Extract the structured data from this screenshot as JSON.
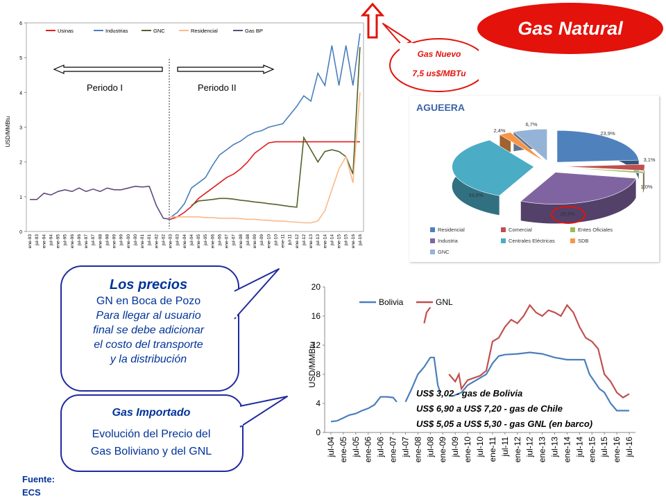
{
  "header": {
    "title": "Gas Natural",
    "new_gas_line1": "Gas Nuevo",
    "new_gas_line2": "7,5 us$/MBTu"
  },
  "callout_prices": {
    "title": "Los precios",
    "line1": "GN en Boca de Pozo",
    "line2": "Para llegar al usuario",
    "line3": "final se debe adicionar",
    "line4": "el costo del transporte",
    "line5": "y la distribución"
  },
  "callout_imported": {
    "title": "Gas Importado",
    "line1": "Evolución del Precio del",
    "line2": "Gas Boliviano y del GNL"
  },
  "source": {
    "line1": "Fuente:",
    "line2": "ECS"
  },
  "colors": {
    "usinas": "#e31a1c",
    "industrias": "#4a7ebb",
    "gnc": "#4f6228",
    "residencial": "#f9b98b",
    "gasbp": "#604a7b",
    "bolivia": "#4a7ebb",
    "gnl": "#c0504d",
    "accent_red": "#e3120b",
    "bubble_border": "#1f2a9e",
    "text_blue": "#003399"
  },
  "chart_data": [
    {
      "type": "line",
      "ylabel": "USD/MMBtu",
      "ylim": [
        0,
        6
      ],
      "yticks": [
        "0",
        "1",
        "2",
        "3",
        "4",
        "5",
        "6"
      ],
      "x": [
        "ene-93",
        "jul-93",
        "ene-94",
        "jul-94",
        "ene-95",
        "jul-95",
        "ene-96",
        "jul-96",
        "ene-97",
        "jul-97",
        "ene-98",
        "jul-98",
        "ene-99",
        "jul-99",
        "ene-00",
        "jul-00",
        "ene-01",
        "jul-01",
        "ene-02",
        "jul-02",
        "ene-03",
        "jul-03",
        "ene-04",
        "jul-04",
        "ene-05",
        "jul-05",
        "ene-06",
        "jul-06",
        "ene-07",
        "jul-07",
        "ene-08",
        "jul-08",
        "ene-09",
        "jul-09",
        "ene-10",
        "jul-10",
        "ene-11",
        "jul-11",
        "ene-12",
        "jul-12",
        "ene-13",
        "jul-13",
        "ene-14",
        "jul-14",
        "ene-15",
        "jul-15",
        "ene-16",
        "jul-16"
      ],
      "legend": [
        "Usinas",
        "Industrias",
        "GNC",
        "Residencial",
        "Gas BP"
      ],
      "period_labels": [
        "Periodo I",
        "Periodo II"
      ],
      "period_split": "ene-03",
      "series": [
        {
          "name": "Usinas",
          "color": "#e31a1c",
          "points": [
            [
              20,
              0.35
            ],
            [
              21,
              0.42
            ],
            [
              22,
              0.55
            ],
            [
              23,
              0.72
            ],
            [
              24,
              0.95
            ],
            [
              25,
              1.1
            ],
            [
              26,
              1.25
            ],
            [
              27,
              1.4
            ],
            [
              28,
              1.55
            ],
            [
              29,
              1.65
            ],
            [
              30,
              1.8
            ],
            [
              31,
              2.0
            ],
            [
              32,
              2.25
            ],
            [
              33,
              2.4
            ],
            [
              34,
              2.55
            ],
            [
              35,
              2.58
            ],
            [
              36,
              2.58
            ],
            [
              37,
              2.58
            ],
            [
              38,
              2.58
            ],
            [
              39,
              2.58
            ],
            [
              40,
              2.58
            ],
            [
              41,
              2.58
            ],
            [
              42,
              2.58
            ],
            [
              43,
              2.58
            ],
            [
              44,
              2.58
            ],
            [
              45,
              2.58
            ],
            [
              46,
              2.58
            ],
            [
              47,
              2.58
            ]
          ]
        },
        {
          "name": "Industrias",
          "color": "#4a7ebb",
          "points": [
            [
              20,
              0.4
            ],
            [
              21,
              0.55
            ],
            [
              22,
              0.8
            ],
            [
              23,
              1.25
            ],
            [
              24,
              1.4
            ],
            [
              25,
              1.55
            ],
            [
              26,
              1.9
            ],
            [
              27,
              2.2
            ],
            [
              28,
              2.35
            ],
            [
              29,
              2.5
            ],
            [
              30,
              2.6
            ],
            [
              31,
              2.75
            ],
            [
              32,
              2.85
            ],
            [
              33,
              2.9
            ],
            [
              34,
              3.0
            ],
            [
              35,
              3.05
            ],
            [
              36,
              3.1
            ],
            [
              37,
              3.35
            ],
            [
              38,
              3.6
            ],
            [
              39,
              3.9
            ],
            [
              40,
              3.75
            ],
            [
              41,
              4.55
            ],
            [
              42,
              4.2
            ],
            [
              43,
              5.35
            ],
            [
              44,
              4.2
            ],
            [
              45,
              5.35
            ],
            [
              46,
              4.2
            ],
            [
              47,
              5.7
            ]
          ]
        },
        {
          "name": "GNC",
          "color": "#4f6228",
          "points": [
            [
              23,
              0.75
            ],
            [
              24,
              0.88
            ],
            [
              25,
              0.9
            ],
            [
              26,
              0.92
            ],
            [
              27,
              0.95
            ],
            [
              28,
              0.95
            ],
            [
              29,
              0.93
            ],
            [
              30,
              0.9
            ],
            [
              31,
              0.88
            ],
            [
              32,
              0.85
            ],
            [
              33,
              0.83
            ],
            [
              34,
              0.8
            ],
            [
              35,
              0.78
            ],
            [
              36,
              0.75
            ],
            [
              37,
              0.72
            ],
            [
              38,
              0.7
            ],
            [
              39,
              2.7
            ],
            [
              40,
              2.35
            ],
            [
              41,
              2.0
            ],
            [
              42,
              2.3
            ],
            [
              43,
              2.35
            ],
            [
              44,
              2.3
            ],
            [
              45,
              2.15
            ],
            [
              46,
              1.65
            ],
            [
              47,
              5.3
            ]
          ]
        },
        {
          "name": "Residencial",
          "color": "#f9b98b",
          "points": [
            [
              20,
              0.42
            ],
            [
              21,
              0.42
            ],
            [
              22,
              0.42
            ],
            [
              23,
              0.42
            ],
            [
              24,
              0.42
            ],
            [
              25,
              0.4
            ],
            [
              26,
              0.4
            ],
            [
              27,
              0.38
            ],
            [
              28,
              0.38
            ],
            [
              29,
              0.38
            ],
            [
              30,
              0.37
            ],
            [
              31,
              0.35
            ],
            [
              32,
              0.35
            ],
            [
              33,
              0.33
            ],
            [
              34,
              0.32
            ],
            [
              35,
              0.3
            ],
            [
              36,
              0.3
            ],
            [
              37,
              0.28
            ],
            [
              38,
              0.27
            ],
            [
              39,
              0.25
            ],
            [
              40,
              0.25
            ],
            [
              41,
              0.3
            ],
            [
              42,
              0.6
            ],
            [
              43,
              1.2
            ],
            [
              44,
              1.8
            ],
            [
              45,
              2.15
            ],
            [
              46,
              1.4
            ],
            [
              47,
              4.0
            ]
          ]
        },
        {
          "name": "Gas BP",
          "color": "#604a7b",
          "points": [
            [
              0,
              0.92
            ],
            [
              1,
              0.92
            ],
            [
              2,
              1.1
            ],
            [
              3,
              1.05
            ],
            [
              4,
              1.15
            ],
            [
              5,
              1.2
            ],
            [
              6,
              1.15
            ],
            [
              7,
              1.25
            ],
            [
              8,
              1.15
            ],
            [
              9,
              1.22
            ],
            [
              10,
              1.15
            ],
            [
              11,
              1.25
            ],
            [
              12,
              1.2
            ],
            [
              13,
              1.2
            ],
            [
              14,
              1.25
            ],
            [
              15,
              1.3
            ],
            [
              16,
              1.28
            ],
            [
              17,
              1.3
            ],
            [
              18,
              0.75
            ],
            [
              19,
              0.38
            ],
            [
              20,
              0.35
            ]
          ]
        }
      ]
    },
    {
      "type": "pie",
      "title": "AGUEERA",
      "categories": [
        "Residencial",
        "Comercial",
        "Entes Oficiales",
        "Industria",
        "Centrales Eléctricas",
        "SDB",
        "GNC"
      ],
      "values": [
        23.9,
        3.1,
        1.0,
        28.9,
        33.9,
        2.4,
        6.7
      ],
      "labels": [
        "23,9%",
        "3,1%",
        "1,0%",
        "28,9%",
        "33,9%",
        "2,4%",
        "6,7%"
      ],
      "colors": [
        "#4f81bd",
        "#c0504d",
        "#9bbb59",
        "#8064a2",
        "#4bacc6",
        "#f79646",
        "#95b3d7"
      ],
      "highlight": "28,9%"
    },
    {
      "type": "line",
      "ylabel": "USD/MMBtu",
      "ylim": [
        0,
        20
      ],
      "yticks": [
        "0",
        "4",
        "8",
        "12",
        "16",
        "20"
      ],
      "x": [
        "jul-04",
        "ene-05",
        "jul-05",
        "ene-06",
        "jul-06",
        "ene-07",
        "jul-07",
        "ene-08",
        "jul-08",
        "ene-09",
        "jul-09",
        "ene-10",
        "jul-10",
        "ene-11",
        "jul-11",
        "ene-12",
        "jul-12",
        "ene-13",
        "jul-13",
        "ene-14",
        "jul-14",
        "ene-15",
        "jul-15",
        "ene-16",
        "jul-16"
      ],
      "series": [
        {
          "name": "Bolivia",
          "color": "#4a7ebb",
          "segments": [
            [
              [
                0,
                1.5
              ],
              [
                0.5,
                1.6
              ],
              [
                1,
                2.0
              ],
              [
                1.5,
                2.4
              ],
              [
                2,
                2.6
              ],
              [
                2.5,
                3.0
              ],
              [
                3,
                3.3
              ],
              [
                3.5,
                3.8
              ],
              [
                4,
                4.9
              ],
              [
                4.5,
                4.9
              ],
              [
                5,
                4.8
              ],
              [
                5.3,
                4.2
              ]
            ],
            [
              [
                6,
                4.2
              ],
              [
                6.5,
                6.0
              ],
              [
                7,
                8.0
              ],
              [
                7.5,
                9.0
              ],
              [
                8,
                10.3
              ],
              [
                8.3,
                10.3
              ],
              [
                8.6,
                6.5
              ],
              [
                8.8,
                5.5
              ]
            ],
            [
              [
                9.8,
                5.0
              ],
              [
                10.5,
                5.5
              ],
              [
                11,
                6.5
              ],
              [
                11.5,
                7.0
              ],
              [
                12,
                7.5
              ],
              [
                12.5,
                8.0
              ],
              [
                13,
                9.5
              ],
              [
                13.5,
                10.5
              ],
              [
                14,
                10.7
              ],
              [
                15,
                10.8
              ],
              [
                16,
                11.0
              ],
              [
                17,
                10.8
              ],
              [
                18,
                10.3
              ],
              [
                19,
                10.0
              ],
              [
                20,
                10.0
              ],
              [
                20.4,
                10.0
              ],
              [
                20.8,
                8.0
              ],
              [
                21.2,
                7.0
              ],
              [
                21.6,
                6.0
              ],
              [
                22,
                5.5
              ],
              [
                22.5,
                4.0
              ],
              [
                23,
                3.0
              ],
              [
                24,
                3.0
              ]
            ]
          ]
        },
        {
          "name": "GNL",
          "color": "#c0504d",
          "segments": [
            [
              [
                7.5,
                15.0
              ],
              [
                7.7,
                16.5
              ],
              [
                8,
                17.2
              ]
            ],
            [
              [
                9.5,
                8.0
              ],
              [
                10,
                7.0
              ],
              [
                10.3,
                8.0
              ],
              [
                10.5,
                6.0
              ],
              [
                11,
                7.2
              ],
              [
                11.5,
                7.5
              ],
              [
                12,
                7.8
              ],
              [
                12.5,
                8.5
              ],
              [
                13,
                12.5
              ],
              [
                13.5,
                13.0
              ],
              [
                14,
                14.5
              ],
              [
                14.5,
                15.5
              ],
              [
                15,
                15.0
              ],
              [
                15.5,
                16.0
              ],
              [
                16,
                17.5
              ],
              [
                16.5,
                16.5
              ],
              [
                17,
                16.0
              ],
              [
                17.5,
                16.8
              ],
              [
                18,
                16.5
              ],
              [
                18.5,
                16.0
              ],
              [
                19,
                17.5
              ],
              [
                19.5,
                16.5
              ],
              [
                20,
                14.5
              ],
              [
                20.5,
                13.0
              ],
              [
                21,
                12.5
              ],
              [
                21.5,
                11.5
              ],
              [
                22,
                8.0
              ],
              [
                22.5,
                7.0
              ],
              [
                23,
                5.5
              ],
              [
                23.5,
                4.8
              ],
              [
                24,
                5.3
              ]
            ]
          ]
        }
      ],
      "annotations": [
        "US$ 3,02 - gas de Bolivia",
        "US$ 6,90 a US$ 7,20  - gas de Chile",
        "US$ 5,05 a US$ 5,30 - gas GNL (en barco)"
      ]
    }
  ]
}
